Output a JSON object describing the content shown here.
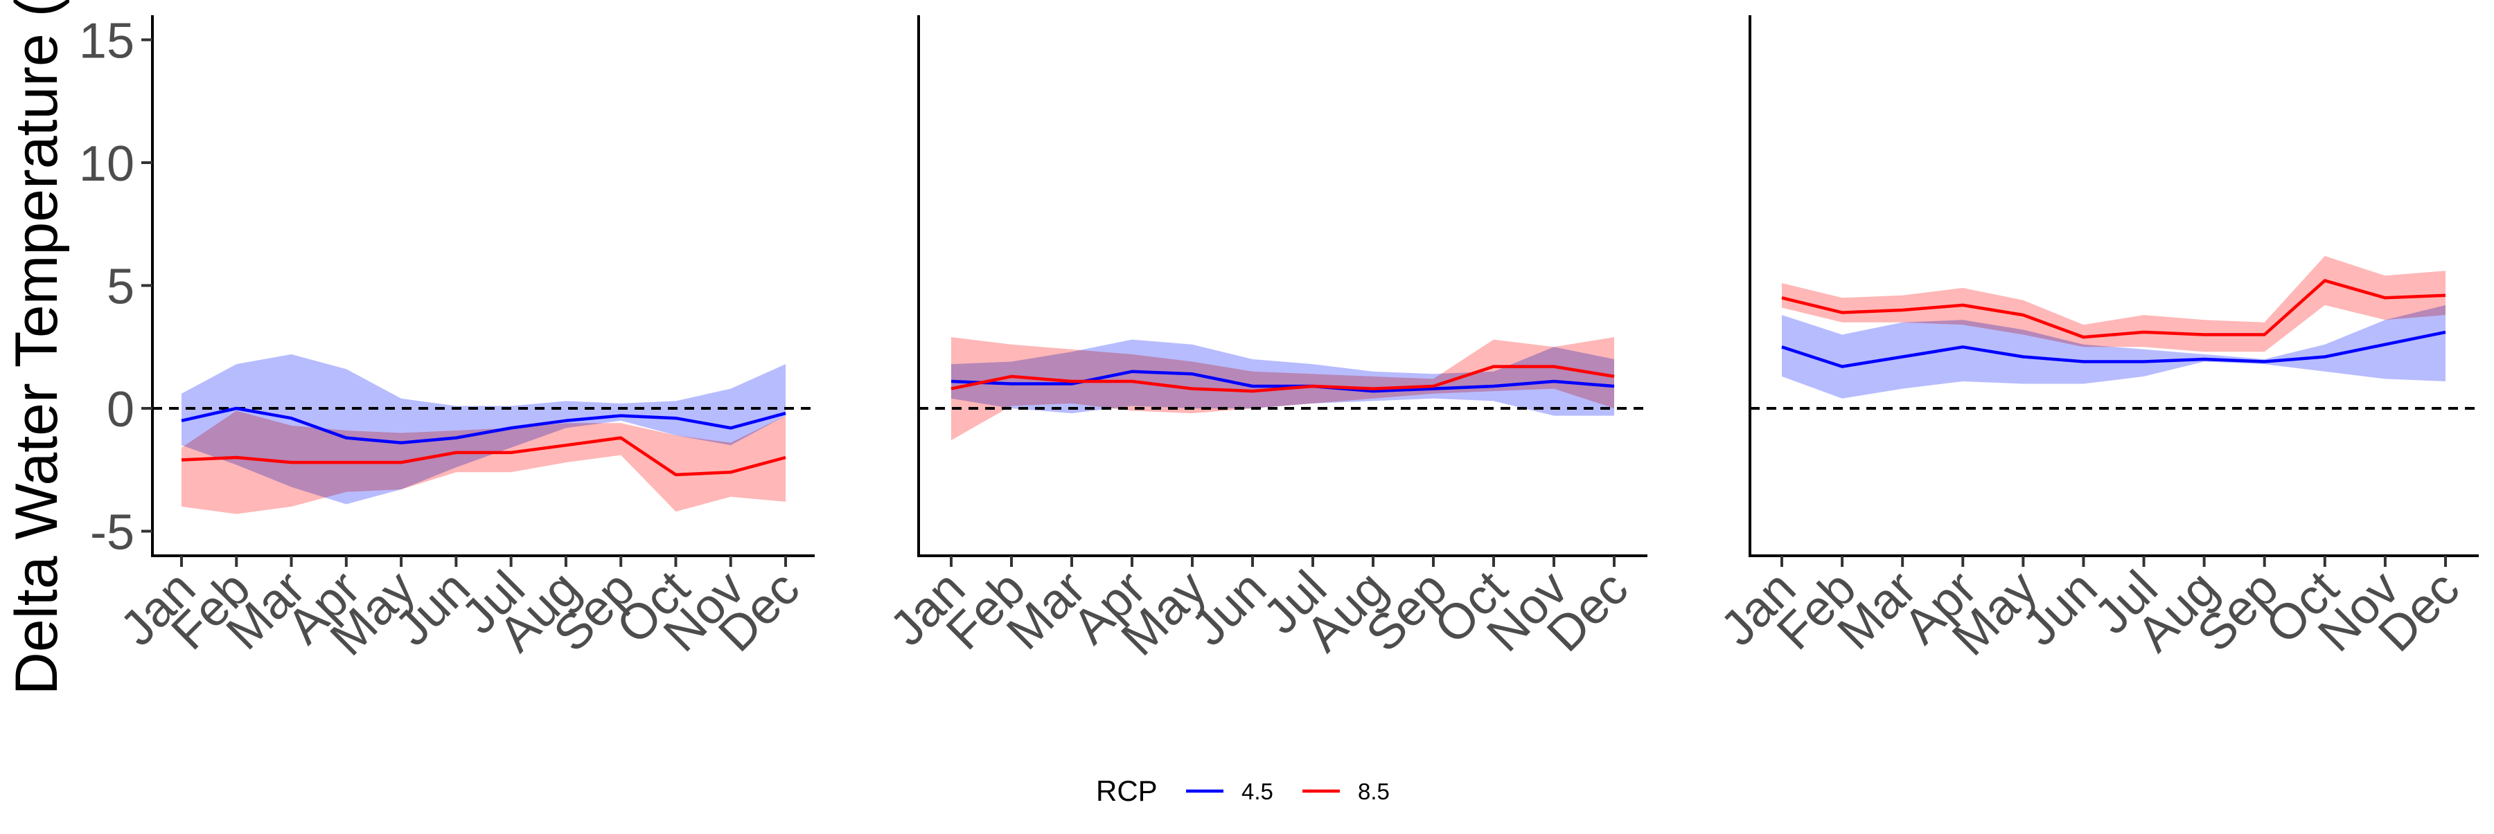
{
  "chart_data": {
    "type": "line",
    "ylabel": "Delta Water Temperature (",
    "ylim": [
      -6,
      16
    ],
    "yticks": [
      -5,
      0,
      5,
      10,
      15
    ],
    "grid": false,
    "reference_line": {
      "y": 0,
      "style": "dashed"
    },
    "categories": [
      "Jan",
      "Feb",
      "Mar",
      "Apr",
      "May",
      "Jun",
      "Jul",
      "Aug",
      "Sep",
      "Oct",
      "Nov",
      "Dec"
    ],
    "legend": {
      "title": "RCP",
      "position": "bottom",
      "entries": [
        {
          "label": "4.5",
          "color": "#0000ff"
        },
        {
          "label": "8.5",
          "color": "#ff0000"
        }
      ]
    },
    "series_colors": {
      "4.5": "#0000ff",
      "8.5": "#ff0000"
    },
    "ribbon_colors": {
      "4.5": "#aab0ff",
      "8.5": "#ffaaaa"
    },
    "overlap_color": "#b07aa8",
    "panels": [
      {
        "series": [
          {
            "name": "4.5",
            "values": [
              -0.5,
              0.0,
              -0.4,
              -1.2,
              -1.4,
              -1.2,
              -0.8,
              -0.5,
              -0.3,
              -0.4,
              -0.8,
              -0.2
            ],
            "lower": [
              -1.5,
              -2.3,
              -3.2,
              -3.9,
              -3.3,
              -2.4,
              -1.6,
              -0.8,
              -0.5,
              -1.1,
              -1.5,
              -0.3
            ],
            "upper": [
              0.6,
              1.8,
              2.2,
              1.6,
              0.4,
              0.1,
              0.1,
              0.3,
              0.2,
              0.3,
              0.8,
              1.8
            ]
          },
          {
            "name": "8.5",
            "values": [
              -2.1,
              -2.0,
              -2.2,
              -2.2,
              -2.2,
              -1.8,
              -1.8,
              -1.5,
              -1.2,
              -2.7,
              -2.6,
              -2.0
            ],
            "lower": [
              -4.0,
              -4.3,
              -4.0,
              -3.4,
              -3.3,
              -2.6,
              -2.6,
              -2.2,
              -1.9,
              -4.2,
              -3.6,
              -3.8
            ],
            "upper": [
              -1.6,
              -0.1,
              -0.7,
              -0.9,
              -1.0,
              -0.9,
              -0.8,
              -0.6,
              -0.6,
              -1.1,
              -1.4,
              -0.3
            ]
          }
        ]
      },
      {
        "series": [
          {
            "name": "4.5",
            "values": [
              1.1,
              1.0,
              1.0,
              1.5,
              1.4,
              0.9,
              0.9,
              0.7,
              0.8,
              0.9,
              1.1,
              0.9
            ],
            "lower": [
              0.4,
              0.0,
              -0.2,
              0.1,
              0.0,
              0.0,
              0.2,
              0.3,
              0.4,
              0.3,
              -0.3,
              -0.3
            ],
            "upper": [
              1.8,
              1.9,
              2.3,
              2.8,
              2.6,
              2.0,
              1.8,
              1.5,
              1.4,
              1.5,
              2.5,
              2.0
            ]
          },
          {
            "name": "8.5",
            "values": [
              0.8,
              1.3,
              1.1,
              1.1,
              0.8,
              0.7,
              0.9,
              0.8,
              0.9,
              1.7,
              1.7,
              1.3
            ],
            "lower": [
              -1.3,
              0.1,
              0.2,
              -0.1,
              -0.2,
              0.0,
              0.2,
              0.4,
              0.6,
              0.7,
              0.8,
              0.0
            ],
            "upper": [
              2.9,
              2.6,
              2.4,
              2.2,
              1.9,
              1.5,
              1.4,
              1.3,
              1.2,
              2.8,
              2.5,
              2.9
            ]
          }
        ]
      },
      {
        "series": [
          {
            "name": "4.5",
            "values": [
              2.5,
              1.7,
              2.1,
              2.5,
              2.1,
              1.9,
              1.9,
              2.0,
              1.9,
              2.1,
              2.6,
              3.1
            ],
            "lower": [
              1.3,
              0.4,
              0.8,
              1.1,
              1.0,
              1.0,
              1.3,
              1.9,
              1.8,
              1.5,
              1.2,
              1.1
            ],
            "upper": [
              3.8,
              3.0,
              3.5,
              3.6,
              3.2,
              2.6,
              2.4,
              2.2,
              2.0,
              2.6,
              3.6,
              4.2
            ]
          },
          {
            "name": "8.5",
            "values": [
              4.5,
              3.9,
              4.0,
              4.2,
              3.8,
              2.9,
              3.1,
              3.0,
              3.0,
              5.2,
              4.5,
              4.6
            ],
            "lower": [
              4.1,
              3.5,
              3.5,
              3.4,
              3.0,
              2.5,
              2.5,
              2.3,
              2.3,
              4.2,
              3.6,
              3.8
            ],
            "upper": [
              5.1,
              4.5,
              4.6,
              4.9,
              4.4,
              3.4,
              3.8,
              3.6,
              3.5,
              6.2,
              5.4,
              5.6
            ]
          }
        ]
      }
    ]
  }
}
